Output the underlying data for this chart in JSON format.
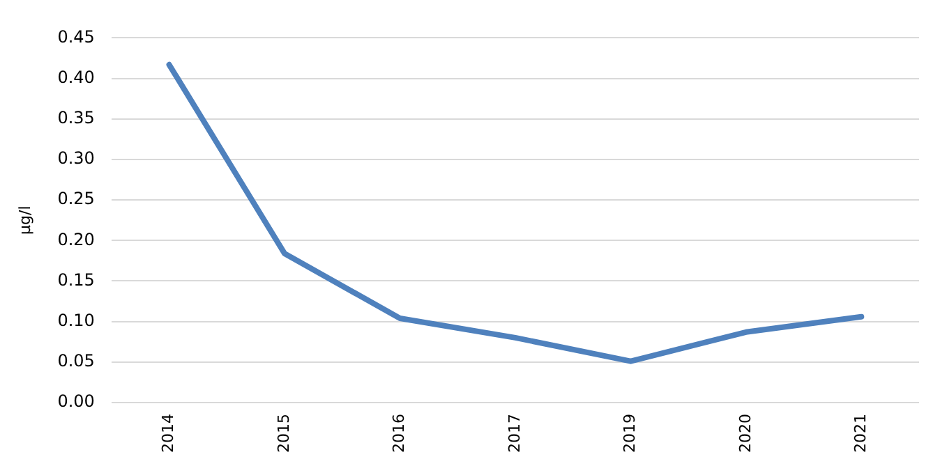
{
  "chart_data": {
    "type": "line",
    "ylabel": "µg/l",
    "categories": [
      "2014",
      "2015",
      "2016",
      "2017",
      "2019",
      "2020",
      "2021"
    ],
    "series": [
      {
        "color": "#4f81bd",
        "values": [
          0.417,
          0.184,
          0.104,
          0.08,
          0.051,
          0.087,
          0.106
        ]
      }
    ],
    "ylim": [
      0,
      0.45
    ],
    "yticks": [
      {
        "value": 0,
        "label": "0.00"
      },
      {
        "value": 0.05,
        "label": "0.05"
      },
      {
        "value": 0.1,
        "label": "0.10"
      },
      {
        "value": 0.15,
        "label": "0.15"
      },
      {
        "value": 0.2,
        "label": "0.20"
      },
      {
        "value": 0.25,
        "label": "0.25"
      },
      {
        "value": 0.3,
        "label": "0.30"
      },
      {
        "value": 0.35,
        "label": "0.35"
      },
      {
        "value": 0.4,
        "label": "0.40"
      },
      {
        "value": 0.45,
        "label": "0.45"
      }
    ],
    "grid": "y",
    "legend": false,
    "marker": "none",
    "line_style": "solid"
  }
}
